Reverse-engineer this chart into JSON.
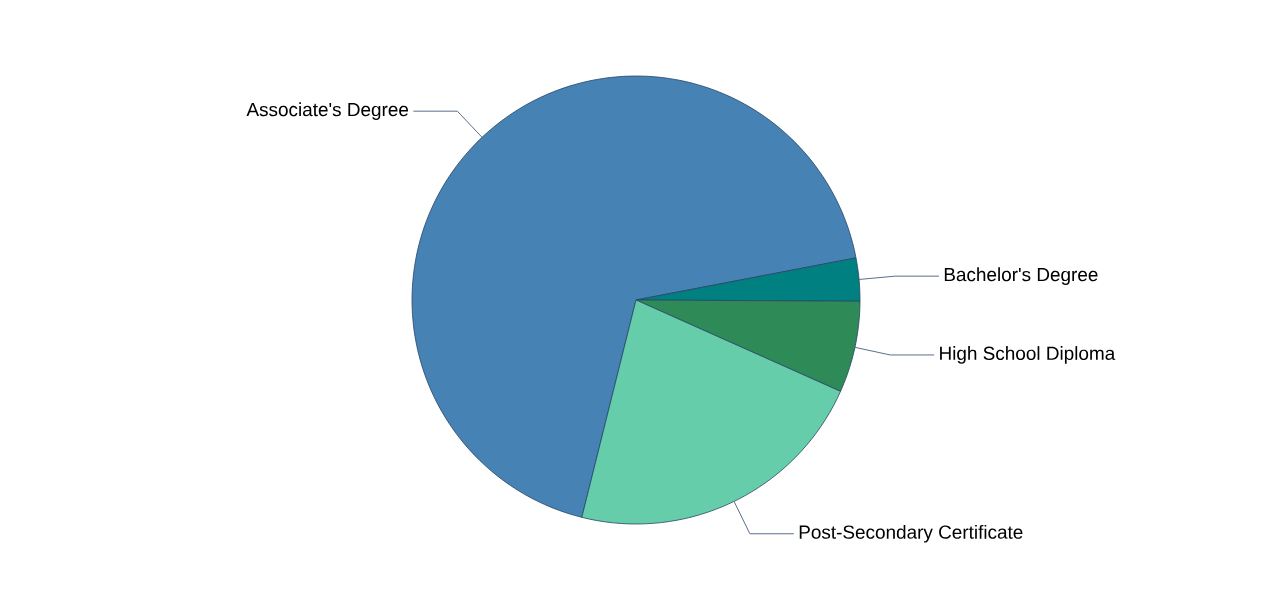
{
  "chart_data": {
    "type": "pie",
    "categories": [
      "Associate's Degree",
      "Bachelor's Degree",
      "High School Diploma",
      "Post-Secondary Certificate"
    ],
    "values": [
      68.1,
      3.1,
      6.6,
      22.2
    ],
    "colors": [
      "#4682b4",
      "#008080",
      "#2e8b57",
      "#66cdaa"
    ]
  }
}
